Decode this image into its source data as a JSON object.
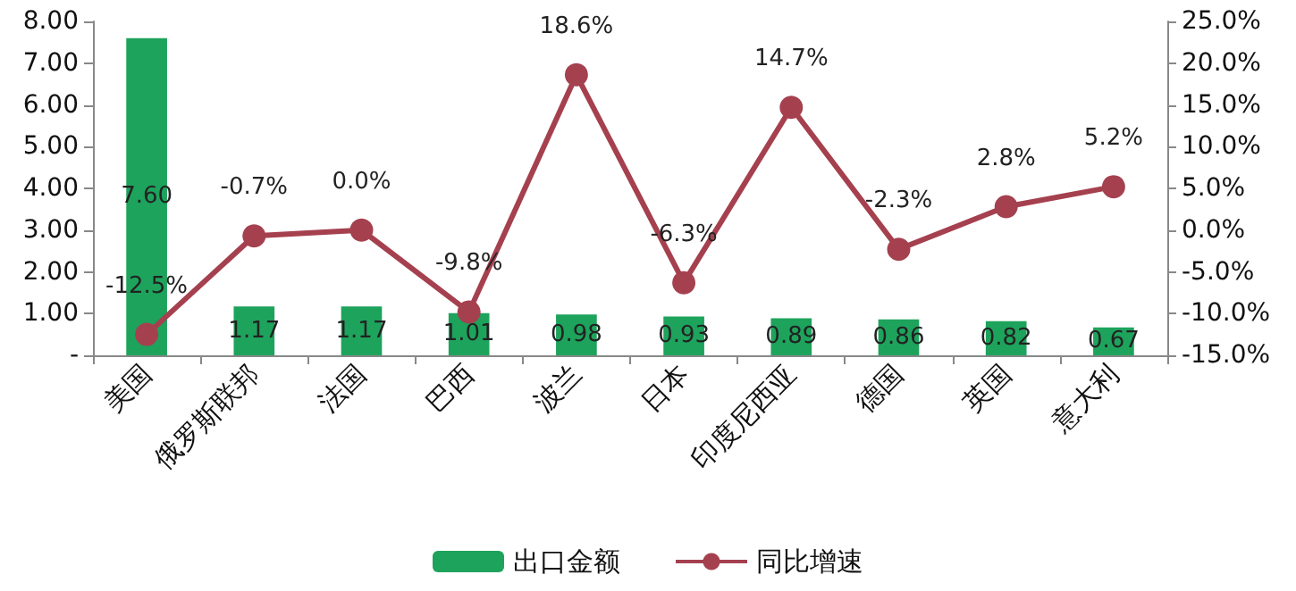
{
  "chart_data": {
    "type": "bar",
    "categories": [
      "美国",
      "俄罗斯联邦",
      "法国",
      "巴西",
      "波兰",
      "日本",
      "印度尼西亚",
      "德国",
      "英国",
      "意大利"
    ],
    "series": [
      {
        "name": "出口金额",
        "color": "#1ea35c",
        "values": [
          7.6,
          1.17,
          1.17,
          1.01,
          0.98,
          0.93,
          0.89,
          0.86,
          0.82,
          0.67
        ],
        "value_labels": [
          "7.60",
          "1.17",
          "1.17",
          "1.01",
          "0.98",
          "0.93",
          "0.89",
          "0.86",
          "0.82",
          "0.67"
        ]
      },
      {
        "name": "同比增速",
        "type": "line",
        "axis": "y2",
        "color": "#a5404f",
        "marker": "circle",
        "values": [
          -12.5,
          -0.7,
          0.0,
          -9.8,
          18.6,
          -6.3,
          14.7,
          -2.3,
          2.8,
          5.2
        ],
        "value_labels": [
          "-12.5%",
          "-0.7%",
          "0.0%",
          "-9.8%",
          "18.6%",
          "-6.3%",
          "14.7%",
          "-2.3%",
          "2.8%",
          "5.2%"
        ]
      }
    ],
    "ylim": [
      0,
      8
    ],
    "yticks": [
      {
        "value": 0,
        "label": "-"
      },
      {
        "value": 1,
        "label": "1.00"
      },
      {
        "value": 2,
        "label": "2.00"
      },
      {
        "value": 3,
        "label": "3.00"
      },
      {
        "value": 4,
        "label": "4.00"
      },
      {
        "value": 5,
        "label": "5.00"
      },
      {
        "value": 6,
        "label": "6.00"
      },
      {
        "value": 7,
        "label": "7.00"
      },
      {
        "value": 8,
        "label": "8.00"
      }
    ],
    "y2lim": [
      -15,
      25
    ],
    "y2ticks": [
      {
        "value": -15,
        "label": "-15.0%"
      },
      {
        "value": -10,
        "label": "-10.0%"
      },
      {
        "value": -5,
        "label": "-5.0%"
      },
      {
        "value": 0,
        "label": "0.0%"
      },
      {
        "value": 5,
        "label": "5.0%"
      },
      {
        "value": 10,
        "label": "10.0%"
      },
      {
        "value": 15,
        "label": "15.0%"
      },
      {
        "value": 20,
        "label": "20.0%"
      },
      {
        "value": 25,
        "label": "25.0%"
      }
    ],
    "grid": false,
    "legend": "bottom"
  }
}
